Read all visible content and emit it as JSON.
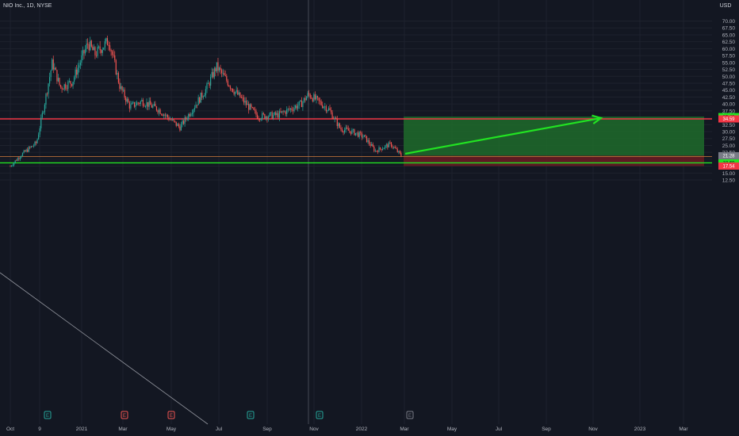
{
  "header": {
    "symbol": "NIO Inc., 1D, NYSE",
    "currency": "USD"
  },
  "colors": {
    "background": "#131722",
    "grid": "#1e222d",
    "candle_up": "#26a69a",
    "candle_down": "#ef5350",
    "resistance_line": "#f23645",
    "support_line": "#22e322",
    "profit_zone": "#1f6b2a",
    "loss_zone": "#6b1b22",
    "arrow": "#22e322",
    "trendline": "#9598a1",
    "reference_line": "#b8703a"
  },
  "chart_data": {
    "type": "candlestick",
    "title": "NIO Inc., 1D, NYSE",
    "y_axis_ticks": [
      "70.00",
      "67.50",
      "65.00",
      "62.50",
      "60.00",
      "57.50",
      "55.00",
      "52.50",
      "50.00",
      "47.50",
      "45.00",
      "42.50",
      "40.00",
      "37.50",
      "35.00",
      "32.50",
      "30.00",
      "27.50",
      "25.00",
      "22.50",
      "20.00",
      "17.50",
      "15.00",
      "12.50"
    ],
    "ylim": [
      11.5,
      72.5
    ],
    "x_axis_ticks": [
      "Oct",
      "9",
      "2021",
      "Mar",
      "May",
      "Jul",
      "Sep",
      "Nov",
      "2022",
      "Mar",
      "May",
      "Jul",
      "Sep",
      "Nov",
      "2023",
      "Mar"
    ],
    "price_path_keypoints": [
      {
        "date": "2020-10-01",
        "close": 17.5
      },
      {
        "date": "2020-10-15",
        "close": 21.5
      },
      {
        "date": "2020-11-05",
        "close": 26.0
      },
      {
        "date": "2020-11-15",
        "close": 40.0
      },
      {
        "date": "2020-11-25",
        "close": 55.0
      },
      {
        "date": "2020-12-05",
        "close": 46.0
      },
      {
        "date": "2020-12-20",
        "close": 48.0
      },
      {
        "date": "2021-01-10",
        "close": 62.0
      },
      {
        "date": "2021-01-20",
        "close": 58.0
      },
      {
        "date": "2021-02-09",
        "close": 63.0
      },
      {
        "date": "2021-02-25",
        "close": 46.0
      },
      {
        "date": "2021-03-10",
        "close": 39.0
      },
      {
        "date": "2021-03-25",
        "close": 41.0
      },
      {
        "date": "2021-04-15",
        "close": 38.0
      },
      {
        "date": "2021-05-12",
        "close": 31.5
      },
      {
        "date": "2021-06-15",
        "close": 45.5
      },
      {
        "date": "2021-06-28",
        "close": 53.5
      },
      {
        "date": "2021-07-20",
        "close": 45.0
      },
      {
        "date": "2021-08-05",
        "close": 40.0
      },
      {
        "date": "2021-08-20",
        "close": 35.5
      },
      {
        "date": "2021-09-15",
        "close": 36.0
      },
      {
        "date": "2021-10-15",
        "close": 40.0
      },
      {
        "date": "2021-10-25",
        "close": 43.5
      },
      {
        "date": "2021-11-20",
        "close": 38.0
      },
      {
        "date": "2021-12-05",
        "close": 31.0
      },
      {
        "date": "2021-12-20",
        "close": 30.0
      },
      {
        "date": "2022-01-05",
        "close": 28.0
      },
      {
        "date": "2022-01-20",
        "close": 23.0
      },
      {
        "date": "2022-02-10",
        "close": 25.5
      },
      {
        "date": "2022-02-25",
        "close": 21.2
      }
    ],
    "horizontal_levels": [
      {
        "name": "resistance",
        "price": 34.59
      },
      {
        "name": "support",
        "price": 18.69
      }
    ],
    "position_tool": {
      "entry_price": 21.28,
      "target_price": 35.43,
      "stop_price": 17.54,
      "start_date": "2022-02-28",
      "end_date": "2023-05-01"
    },
    "earnings_markers": [
      "E",
      "E",
      "E",
      "E",
      "E",
      "E",
      "E"
    ]
  },
  "price_tags": [
    {
      "text": "35.43",
      "bg": "#22e322",
      "fg": "#131722",
      "price": 35.43
    },
    {
      "text": "34.59",
      "bg": "#f23645",
      "fg": "#ffffff",
      "price": 34.59
    },
    {
      "text": "21.28",
      "bg": "#787b86",
      "fg": "#ffffff",
      "price": 21.28
    },
    {
      "text": "18.69",
      "bg": "#22e322",
      "fg": "#131722",
      "price": 18.69
    },
    {
      "text": "17.54",
      "bg": "#f23645",
      "fg": "#ffffff",
      "price": 17.54
    }
  ]
}
